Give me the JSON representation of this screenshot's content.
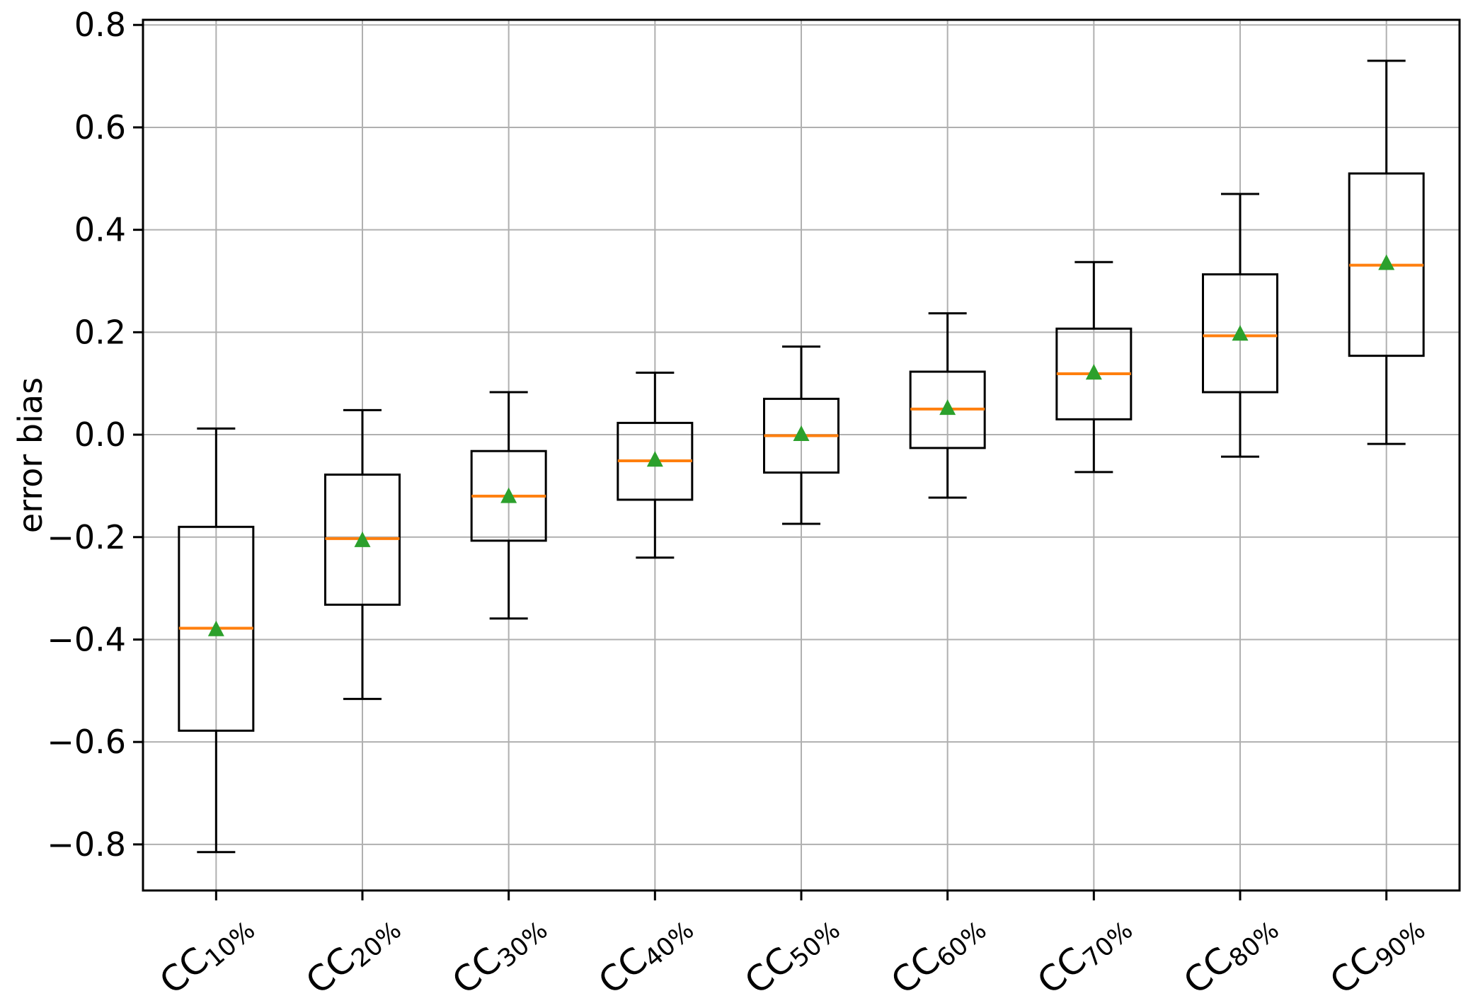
{
  "figure": {
    "background": "#ffffff"
  },
  "chart_data": {
    "type": "boxplot",
    "title": "",
    "xlabel": "",
    "ylabel": "error bias",
    "ylim": [
      -0.89,
      0.81
    ],
    "yticks": [
      0.8,
      0.6,
      0.4,
      0.2,
      0.0,
      -0.2,
      -0.4,
      -0.6,
      -0.8
    ],
    "ytick_labels": [
      "0.8",
      "0.6",
      "0.4",
      "0.2",
      "0.0",
      "−0.2",
      "−0.4",
      "−0.6",
      "−0.8"
    ],
    "grid": true,
    "legend": "none",
    "mean_marker": "triangle-up",
    "colors": {
      "median": "#ff7f0e",
      "mean": "#2ca02c",
      "box": "#000000",
      "whisker": "#000000",
      "grid": "#b0b0b0",
      "spine": "#000000",
      "tick_label": "#000000"
    },
    "categories": [
      {
        "main": "CC",
        "sub": "10%"
      },
      {
        "main": "CC",
        "sub": "20%"
      },
      {
        "main": "CC",
        "sub": "30%"
      },
      {
        "main": "CC",
        "sub": "40%"
      },
      {
        "main": "CC",
        "sub": "50%"
      },
      {
        "main": "CC",
        "sub": "60%"
      },
      {
        "main": "CC",
        "sub": "70%"
      },
      {
        "main": "CC",
        "sub": "80%"
      },
      {
        "main": "CC",
        "sub": "90%"
      }
    ],
    "series": [
      {
        "name": "CC10%",
        "whislo": -0.815,
        "q1": -0.578,
        "med": -0.378,
        "q3": -0.18,
        "whishi": 0.012,
        "mean": -0.381
      },
      {
        "name": "CC20%",
        "whislo": -0.516,
        "q1": -0.332,
        "med": -0.203,
        "q3": -0.078,
        "whishi": 0.048,
        "mean": -0.207
      },
      {
        "name": "CC30%",
        "whislo": -0.359,
        "q1": -0.207,
        "med": -0.12,
        "q3": -0.032,
        "whishi": 0.083,
        "mean": -0.121
      },
      {
        "name": "CC40%",
        "whislo": -0.24,
        "q1": -0.127,
        "med": -0.051,
        "q3": 0.023,
        "whishi": 0.121,
        "mean": -0.05
      },
      {
        "name": "CC50%",
        "whislo": -0.174,
        "q1": -0.074,
        "med": -0.002,
        "q3": 0.07,
        "whishi": 0.172,
        "mean": 0.0
      },
      {
        "name": "CC60%",
        "whislo": -0.123,
        "q1": -0.026,
        "med": 0.05,
        "q3": 0.123,
        "whishi": 0.237,
        "mean": 0.051
      },
      {
        "name": "CC70%",
        "whislo": -0.073,
        "q1": 0.03,
        "med": 0.119,
        "q3": 0.207,
        "whishi": 0.337,
        "mean": 0.12
      },
      {
        "name": "CC80%",
        "whislo": -0.043,
        "q1": 0.083,
        "med": 0.193,
        "q3": 0.313,
        "whishi": 0.47,
        "mean": 0.196
      },
      {
        "name": "CC90%",
        "whislo": -0.018,
        "q1": 0.154,
        "med": 0.331,
        "q3": 0.51,
        "whishi": 0.73,
        "mean": 0.334
      }
    ]
  }
}
